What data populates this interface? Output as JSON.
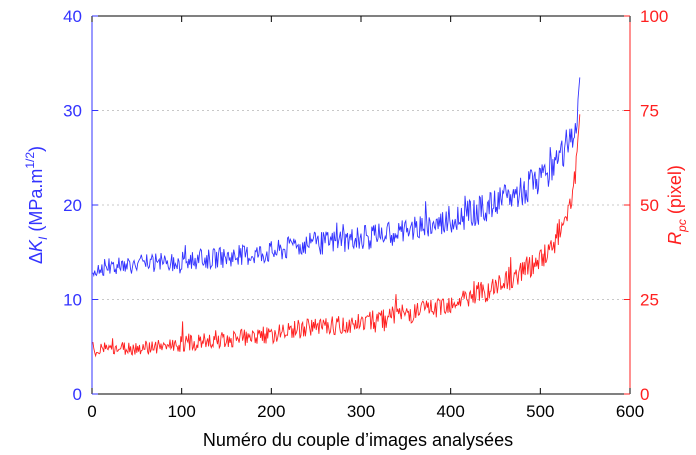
{
  "chart_data": {
    "type": "line",
    "title": "",
    "xlabel": "Numéro du couple d’images analysées",
    "ylabel_left": {
      "delta": "Δ",
      "symbol": "K",
      "subscript": "I",
      "unit_open": " (MPa.m",
      "unit_exp": "1/2",
      "unit_close": ")"
    },
    "ylabel_right": {
      "symbol": "R",
      "subscript": "pc",
      "unit": " (pixel)"
    },
    "xlim": [
      0,
      600
    ],
    "ylim_left": [
      0,
      40
    ],
    "ylim_right": [
      0,
      100
    ],
    "xticks": [
      "0",
      "100",
      "200",
      "300",
      "400",
      "500",
      "600"
    ],
    "yticks_left": [
      "0",
      "10",
      "20",
      "30",
      "40"
    ],
    "yticks_right": [
      "0",
      "25",
      "50",
      "75",
      "100"
    ],
    "grid": "horizontal dotted",
    "colors": {
      "left_series": "#3333ff",
      "right_series": "#ff2020",
      "grid": "#c8c8c8",
      "axis": "#000000"
    },
    "series": [
      {
        "axis": "left",
        "x": [
          1,
          15,
          30,
          60,
          90,
          120,
          150,
          180,
          210,
          230,
          250,
          280,
          300,
          330,
          360,
          390,
          420,
          450,
          480,
          500,
          515,
          525,
          535,
          540,
          544
        ],
        "values": [
          13,
          13.5,
          13.6,
          13.8,
          14.0,
          14.2,
          14.5,
          14.8,
          15.2,
          15.8,
          15.9,
          16.3,
          16.5,
          17.0,
          17.5,
          18.2,
          19.0,
          20.1,
          21.5,
          22.8,
          24.0,
          25.3,
          27.0,
          29.0,
          33.5
        ]
      },
      {
        "axis": "right",
        "x": [
          1,
          15,
          30,
          60,
          90,
          120,
          150,
          180,
          210,
          230,
          250,
          280,
          300,
          330,
          360,
          390,
          420,
          450,
          480,
          500,
          515,
          525,
          535,
          540,
          544
        ],
        "values": [
          11.5,
          11.8,
          12.0,
          12.3,
          13.0,
          13.8,
          14.5,
          15.2,
          16.0,
          17.2,
          17.5,
          18.5,
          19.2,
          20.3,
          21.5,
          23.5,
          25.5,
          28.5,
          32.5,
          36.0,
          40.0,
          45.0,
          52.0,
          60.0,
          74.0
        ]
      }
    ]
  }
}
